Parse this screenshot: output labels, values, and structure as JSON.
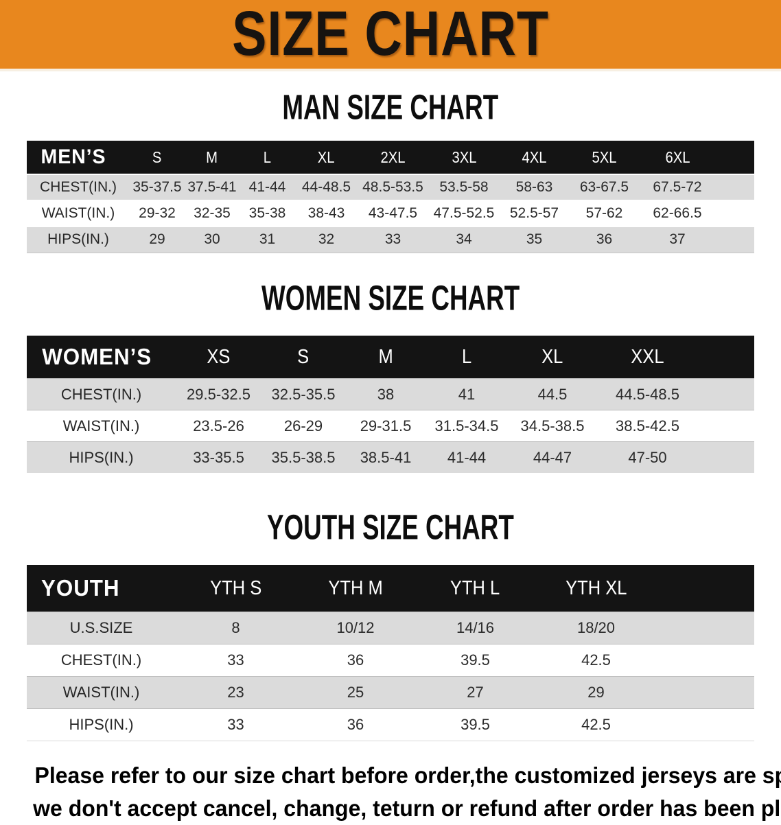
{
  "banner": {
    "title": "SIZE CHART",
    "bg_color": "#E8871E",
    "text_color": "#171310"
  },
  "sections": [
    {
      "heading": "MAN SIZE CHART",
      "header_label": "MEN’S",
      "columns": [
        "S",
        "M",
        "L",
        "XL",
        "2XL",
        "3XL",
        "4XL",
        "5XL",
        "6XL"
      ],
      "rows": [
        {
          "label": "CHEST(IN.)",
          "values": [
            "35-37.5",
            "37.5-41",
            "41-44",
            "44-48.5",
            "48.5-53.5",
            "53.5-58",
            "58-63",
            "63-67.5",
            "67.5-72"
          ]
        },
        {
          "label": "WAIST(IN.)",
          "values": [
            "29-32",
            "32-35",
            "35-38",
            "38-43",
            "43-47.5",
            "47.5-52.5",
            "52.5-57",
            "57-62",
            "62-66.5"
          ]
        },
        {
          "label": "HIPS(IN.)",
          "values": [
            "29",
            "30",
            "31",
            "32",
            "33",
            "34",
            "35",
            "36",
            "37"
          ]
        }
      ]
    },
    {
      "heading": "WOMEN SIZE CHART",
      "header_label": "WOMEN’S",
      "columns": [
        "XS",
        "S",
        "M",
        "L",
        "XL",
        "XXL"
      ],
      "rows": [
        {
          "label": "CHEST(IN.)",
          "values": [
            "29.5-32.5",
            "32.5-35.5",
            "38",
            "41",
            "44.5",
            "44.5-48.5"
          ]
        },
        {
          "label": "WAIST(IN.)",
          "values": [
            "23.5-26",
            "26-29",
            "29-31.5",
            "31.5-34.5",
            "34.5-38.5",
            "38.5-42.5"
          ]
        },
        {
          "label": "HIPS(IN.)",
          "values": [
            "33-35.5",
            "35.5-38.5",
            "38.5-41",
            "41-44",
            "44-47",
            "47-50"
          ]
        }
      ]
    },
    {
      "heading": "YOUTH SIZE CHART",
      "header_label": "YOUTH",
      "columns": [
        "YTH S",
        "YTH M",
        "YTH L",
        "YTH XL"
      ],
      "rows": [
        {
          "label": "U.S.SIZE",
          "values": [
            "8",
            "10/12",
            "14/16",
            "18/20"
          ]
        },
        {
          "label": "CHEST(IN.)",
          "values": [
            "33",
            "36",
            "39.5",
            "42.5"
          ]
        },
        {
          "label": "WAIST(IN.)",
          "values": [
            "23",
            "25",
            "27",
            "29"
          ]
        },
        {
          "label": "HIPS(IN.)",
          "values": [
            "33",
            "36",
            "39.5",
            "42.5"
          ]
        }
      ]
    }
  ],
  "footer": {
    "line1": "Please refer to our size chart before order,the customized jerseys are special products,",
    "line2": "we don't accept cancel, change, teturn or refund after order has been placed!",
    "text_color": "#A8322B"
  }
}
